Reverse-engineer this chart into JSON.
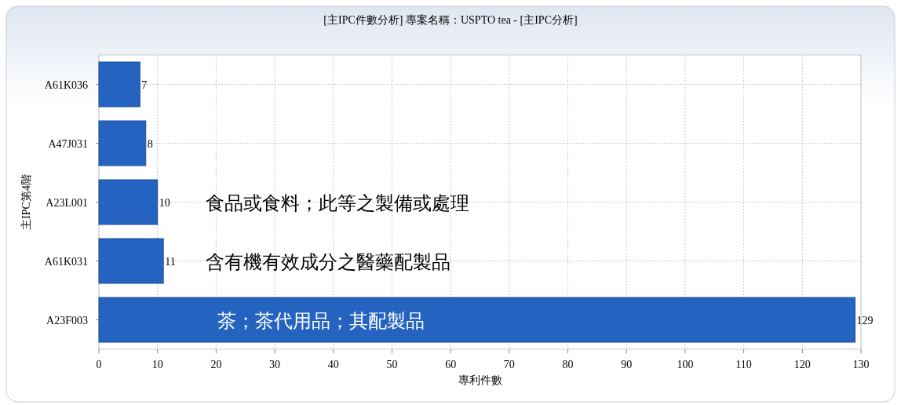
{
  "chart_data": {
    "type": "bar",
    "orientation": "horizontal",
    "title": "[主IPC件數分析] 專案名稱：USPTO tea - [主IPC分析]",
    "xlabel": "專利件數",
    "ylabel": "主IPC第4階",
    "categories": [
      "A61K036",
      "A47J031",
      "A23L001",
      "A61K031",
      "A23F003"
    ],
    "values": [
      7,
      8,
      10,
      11,
      129
    ],
    "color": "#2563c0",
    "data_labels": true,
    "xlim": [
      0,
      130
    ],
    "xticks": [
      0,
      10,
      20,
      30,
      40,
      50,
      60,
      70,
      80,
      90,
      100,
      110,
      120,
      130
    ],
    "grid": true,
    "annotations": [
      "食品或食料；此等之製備或處理",
      "含有機有效成分之醫藥配製品",
      "茶；茶代用品；其配製品"
    ]
  }
}
